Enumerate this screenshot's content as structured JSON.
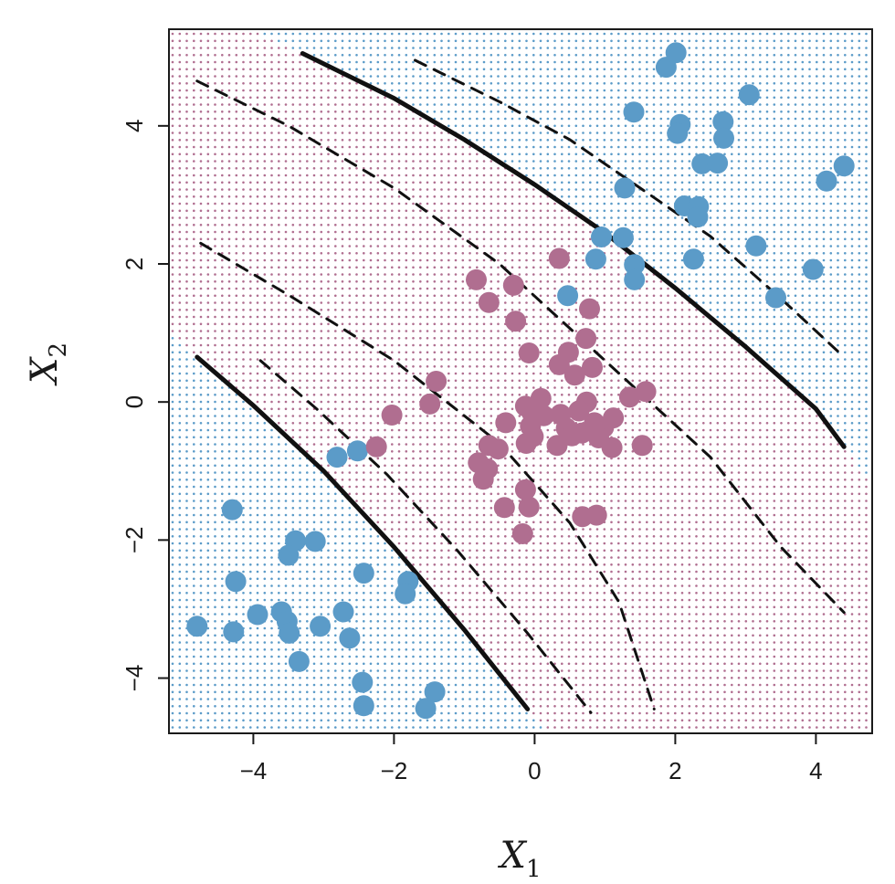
{
  "chart_data": {
    "type": "scatter",
    "xlabel": "X",
    "xlabel_sub": "1",
    "ylabel": "X",
    "ylabel_sub": "2",
    "xlim": [
      -5.2,
      4.8
    ],
    "ylim": [
      -4.8,
      5.4
    ],
    "xticks": [
      -4,
      -2,
      0,
      2,
      4
    ],
    "yticks": [
      -4,
      -2,
      0,
      2,
      4
    ],
    "xtick_labels": [
      "−4",
      "−2",
      "0",
      "2",
      "4"
    ],
    "ytick_labels": [
      "−4",
      "−2",
      "0",
      "2",
      "4"
    ],
    "grid": false,
    "colors": {
      "blue": "#5b9bc8",
      "purple": "#b06e90",
      "curve": "#111111"
    },
    "background_grid": {
      "description": "dotted classification grid: purple inside the band, blue outside",
      "lower_boundary": [
        [
          -4.8,
          0.65
        ],
        [
          -4.0,
          -0.05
        ],
        [
          -3.0,
          -1.0
        ],
        [
          -2.0,
          -2.1
        ],
        [
          -1.0,
          -3.3
        ],
        [
          -0.1,
          -4.45
        ]
      ],
      "upper_boundary": [
        [
          -3.3,
          5.05
        ],
        [
          -2.0,
          4.4
        ],
        [
          -1.0,
          3.8
        ],
        [
          0.0,
          3.15
        ],
        [
          1.0,
          2.45
        ],
        [
          2.0,
          1.65
        ],
        [
          3.0,
          0.8
        ],
        [
          4.0,
          -0.1
        ],
        [
          4.4,
          -0.65
        ]
      ]
    },
    "series": [
      {
        "color": "blue",
        "points": [
          [
            1.87,
            4.85
          ],
          [
            2.01,
            5.06
          ],
          [
            3.05,
            4.45
          ],
          [
            1.41,
            4.2
          ],
          [
            2.07,
            4.02
          ],
          [
            2.03,
            3.89
          ],
          [
            2.68,
            4.06
          ],
          [
            2.69,
            3.82
          ],
          [
            2.38,
            3.45
          ],
          [
            2.6,
            3.46
          ],
          [
            4.4,
            3.42
          ],
          [
            4.15,
            3.2
          ],
          [
            1.28,
            3.1
          ],
          [
            2.13,
            2.84
          ],
          [
            2.33,
            2.83
          ],
          [
            2.32,
            2.68
          ],
          [
            0.95,
            2.39
          ],
          [
            1.26,
            2.38
          ],
          [
            3.15,
            2.26
          ],
          [
            0.87,
            2.07
          ],
          [
            2.26,
            2.07
          ],
          [
            1.42,
            1.99
          ],
          [
            1.42,
            1.77
          ],
          [
            3.96,
            1.92
          ],
          [
            3.43,
            1.51
          ],
          [
            0.47,
            1.54
          ],
          [
            -2.52,
            -0.71
          ],
          [
            -2.81,
            -0.8
          ],
          [
            -4.3,
            -1.56
          ],
          [
            -3.4,
            -2.01
          ],
          [
            -3.12,
            -2.02
          ],
          [
            -3.5,
            -2.22
          ],
          [
            -2.43,
            -2.48
          ],
          [
            -4.25,
            -2.6
          ],
          [
            -1.8,
            -2.6
          ],
          [
            -1.84,
            -2.78
          ],
          [
            -3.6,
            -3.04
          ],
          [
            -3.94,
            -3.08
          ],
          [
            -2.72,
            -3.04
          ],
          [
            -3.52,
            -3.18
          ],
          [
            -3.49,
            -3.35
          ],
          [
            -3.05,
            -3.25
          ],
          [
            -4.8,
            -3.25
          ],
          [
            -4.28,
            -3.33
          ],
          [
            -2.63,
            -3.42
          ],
          [
            -3.35,
            -3.76
          ],
          [
            -2.45,
            -4.06
          ],
          [
            -1.42,
            -4.2
          ],
          [
            -2.43,
            -4.4
          ],
          [
            -1.55,
            -4.44
          ]
        ]
      },
      {
        "color": "purple",
        "points": [
          [
            0.35,
            2.08
          ],
          [
            -0.83,
            1.77
          ],
          [
            -0.3,
            1.69
          ],
          [
            -0.65,
            1.44
          ],
          [
            0.78,
            1.35
          ],
          [
            -0.27,
            1.17
          ],
          [
            0.73,
            0.92
          ],
          [
            -0.08,
            0.71
          ],
          [
            0.48,
            0.72
          ],
          [
            0.35,
            0.54
          ],
          [
            0.57,
            0.39
          ],
          [
            0.82,
            0.5
          ],
          [
            -1.4,
            0.3
          ],
          [
            -1.49,
            -0.03
          ],
          [
            -2.03,
            -0.19
          ],
          [
            -2.25,
            -0.65
          ],
          [
            1.35,
            0.07
          ],
          [
            1.58,
            0.15
          ],
          [
            0.09,
            0.05
          ],
          [
            -0.13,
            -0.06
          ],
          [
            0.74,
            0.0
          ],
          [
            -0.04,
            -0.15
          ],
          [
            0.37,
            -0.18
          ],
          [
            0.63,
            -0.13
          ],
          [
            0.13,
            -0.2
          ],
          [
            0.85,
            -0.3
          ],
          [
            1.12,
            -0.23
          ],
          [
            -0.41,
            -0.3
          ],
          [
            -0.06,
            -0.35
          ],
          [
            0.45,
            -0.38
          ],
          [
            0.67,
            -0.45
          ],
          [
            0.98,
            -0.37
          ],
          [
            -0.02,
            -0.5
          ],
          [
            0.53,
            -0.49
          ],
          [
            0.91,
            -0.52
          ],
          [
            -0.12,
            -0.6
          ],
          [
            0.32,
            -0.63
          ],
          [
            1.1,
            -0.66
          ],
          [
            1.53,
            -0.63
          ],
          [
            -0.65,
            -0.63
          ],
          [
            -0.52,
            -0.68
          ],
          [
            -0.8,
            -0.88
          ],
          [
            -0.67,
            -0.97
          ],
          [
            -0.73,
            -1.12
          ],
          [
            -0.13,
            -1.27
          ],
          [
            -0.43,
            -1.53
          ],
          [
            -0.08,
            -1.52
          ],
          [
            0.68,
            -1.66
          ],
          [
            0.88,
            -1.64
          ],
          [
            -0.17,
            -1.91
          ]
        ]
      }
    ]
  }
}
